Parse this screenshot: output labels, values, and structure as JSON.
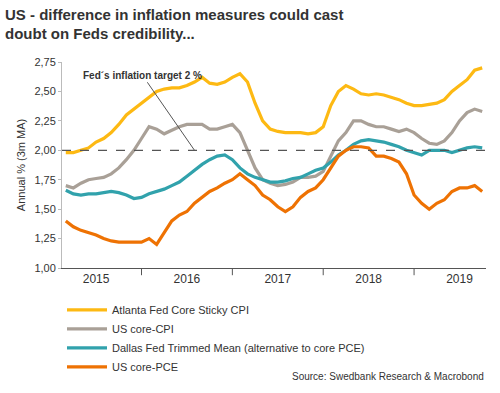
{
  "chart_data": {
    "type": "line",
    "title": "US - difference in inflation measures could cast doubt on Feds credibility...",
    "y_label": "Annual % (3m MA)",
    "source": "Source: Swedbank Research & Macrobond",
    "reference_line": {
      "value": 2,
      "label": "Fed´s inflation target 2 %",
      "line_style": "dashed"
    },
    "categories": [
      null,
      null,
      null,
      null,
      "2015",
      null,
      null,
      null,
      null,
      null,
      null,
      null,
      null,
      null,
      null,
      null,
      "2016",
      null,
      null,
      null,
      null,
      null,
      null,
      null,
      null,
      null,
      null,
      null,
      "2017",
      null,
      null,
      null,
      null,
      null,
      null,
      null,
      null,
      null,
      null,
      null,
      "2018",
      null,
      null,
      null,
      null,
      null,
      null,
      null,
      null,
      null,
      null,
      null,
      "2019",
      null,
      null,
      null
    ],
    "series": [
      {
        "name": "Atlanta Fed Core Sticky CPI",
        "color": "#FDB913",
        "values": [
          1.98,
          1.98,
          2.0,
          2.02,
          2.07,
          2.1,
          2.15,
          2.22,
          2.3,
          2.35,
          2.4,
          2.45,
          2.5,
          2.52,
          2.53,
          2.53,
          2.55,
          2.58,
          2.62,
          2.57,
          2.56,
          2.58,
          2.62,
          2.65,
          2.58,
          2.4,
          2.25,
          2.18,
          2.16,
          2.15,
          2.15,
          2.15,
          2.14,
          2.15,
          2.2,
          2.38,
          2.5,
          2.55,
          2.52,
          2.48,
          2.47,
          2.48,
          2.47,
          2.45,
          2.43,
          2.4,
          2.38,
          2.38,
          2.39,
          2.4,
          2.43,
          2.5,
          2.55,
          2.6,
          2.68,
          2.7
        ]
      },
      {
        "name": "US core-CPI",
        "color": "#A9A097",
        "values": [
          1.7,
          1.68,
          1.72,
          1.75,
          1.76,
          1.77,
          1.8,
          1.85,
          1.92,
          2.0,
          2.1,
          2.2,
          2.18,
          2.14,
          2.17,
          2.2,
          2.22,
          2.22,
          2.22,
          2.18,
          2.18,
          2.2,
          2.22,
          2.15,
          2.0,
          1.85,
          1.75,
          1.72,
          1.7,
          1.71,
          1.73,
          1.77,
          1.77,
          1.78,
          1.82,
          1.95,
          2.08,
          2.15,
          2.25,
          2.25,
          2.22,
          2.2,
          2.2,
          2.18,
          2.16,
          2.18,
          2.15,
          2.1,
          2.06,
          2.05,
          2.08,
          2.15,
          2.25,
          2.32,
          2.35,
          2.33
        ]
      },
      {
        "name": "Dallas Fed Trimmed Mean (alternative to core PCE)",
        "color": "#31A2AC",
        "values": [
          1.66,
          1.63,
          1.62,
          1.63,
          1.63,
          1.64,
          1.65,
          1.64,
          1.62,
          1.59,
          1.6,
          1.63,
          1.65,
          1.67,
          1.7,
          1.73,
          1.78,
          1.83,
          1.88,
          1.92,
          1.95,
          1.96,
          1.92,
          1.85,
          1.8,
          1.77,
          1.75,
          1.73,
          1.73,
          1.74,
          1.76,
          1.77,
          1.8,
          1.83,
          1.85,
          1.9,
          1.96,
          2.0,
          2.05,
          2.08,
          2.09,
          2.08,
          2.07,
          2.05,
          2.03,
          2.0,
          1.98,
          1.96,
          2.0,
          2.0,
          2.0,
          1.98,
          2.0,
          2.02,
          2.03,
          2.02
        ]
      },
      {
        "name": "US core-PCE",
        "color": "#EE7203",
        "values": [
          1.4,
          1.35,
          1.32,
          1.3,
          1.28,
          1.25,
          1.23,
          1.22,
          1.22,
          1.22,
          1.22,
          1.25,
          1.2,
          1.3,
          1.4,
          1.45,
          1.48,
          1.55,
          1.6,
          1.65,
          1.68,
          1.72,
          1.75,
          1.8,
          1.75,
          1.7,
          1.62,
          1.58,
          1.52,
          1.48,
          1.52,
          1.6,
          1.65,
          1.68,
          1.75,
          1.85,
          1.95,
          2.0,
          2.03,
          2.03,
          2.02,
          1.95,
          1.95,
          1.93,
          1.9,
          1.8,
          1.62,
          1.55,
          1.5,
          1.55,
          1.58,
          1.65,
          1.68,
          1.68,
          1.7,
          1.65
        ]
      }
    ],
    "ylim": [
      1,
      2.75
    ],
    "yticks": [
      {
        "value": 1,
        "label": "1,00"
      },
      {
        "value": 1.25,
        "label": "1,25"
      },
      {
        "value": 1.5,
        "label": "1,50"
      },
      {
        "value": 1.75,
        "label": "1,75"
      },
      {
        "value": 2,
        "label": "2,00"
      },
      {
        "value": 2.25,
        "label": "2,25"
      },
      {
        "value": 2.5,
        "label": "2,50"
      },
      {
        "value": 2.75,
        "label": "2,75"
      }
    ],
    "grid": false,
    "legend": "bottom"
  }
}
